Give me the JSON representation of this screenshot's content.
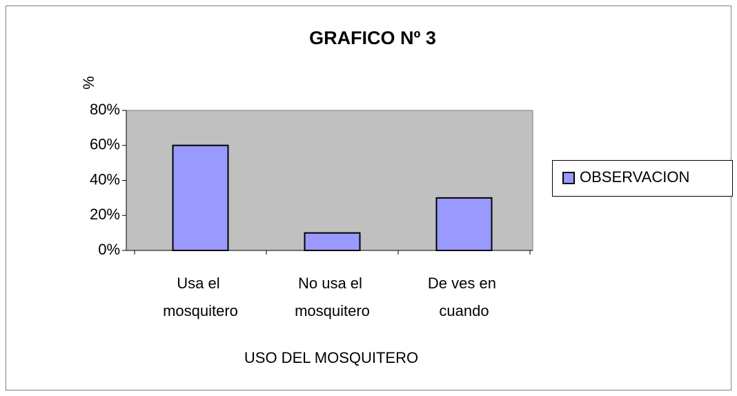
{
  "chart_data": {
    "type": "bar",
    "title": "GRAFICO Nº 3",
    "y_label": "%",
    "x_label": "USO DEL MOSQUITERO",
    "categories": [
      "Usa el mosquitero",
      "No usa el mosquitero",
      "De ves en cuando"
    ],
    "series": [
      {
        "name": "OBSERVACION",
        "color": "#9999ff",
        "values": [
          60,
          10,
          30
        ]
      }
    ],
    "ylim": [
      0,
      80
    ],
    "yticks": [
      {
        "value": 0,
        "label": "0%"
      },
      {
        "value": 20,
        "label": "20%"
      },
      {
        "value": 40,
        "label": "40%"
      },
      {
        "value": 60,
        "label": "60%"
      },
      {
        "value": 80,
        "label": "80%"
      }
    ],
    "legend": "right"
  }
}
